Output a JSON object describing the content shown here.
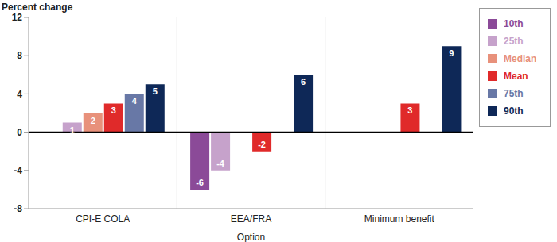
{
  "chart_data": {
    "type": "bar",
    "ylabel": "Percent change",
    "xlabel": "Option",
    "categories": [
      "CPI-E COLA",
      "EEA/FRA",
      "Minimum benefit"
    ],
    "series": [
      {
        "name": "10th",
        "color": "#8b4a98",
        "values": [
          0,
          -6,
          0
        ]
      },
      {
        "name": "25th",
        "color": "#c6a2cb",
        "values": [
          1,
          -4,
          0
        ]
      },
      {
        "name": "Median",
        "color": "#e8917b",
        "values": [
          2,
          0,
          0
        ]
      },
      {
        "name": "Mean",
        "color": "#e02a2a",
        "values": [
          3,
          -2,
          3
        ]
      },
      {
        "name": "75th",
        "color": "#6878a6",
        "values": [
          4,
          0,
          0
        ]
      },
      {
        "name": "90th",
        "color": "#0e2857",
        "values": [
          5,
          6,
          9
        ]
      }
    ],
    "ylim": [
      -8,
      12
    ],
    "yticks": [
      -8,
      -4,
      0,
      4,
      8,
      12
    ],
    "grid": true,
    "legend": "right",
    "data_labels": true
  }
}
